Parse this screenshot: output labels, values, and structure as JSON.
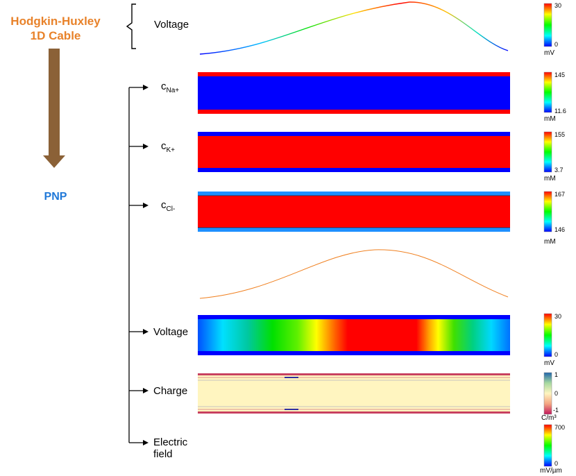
{
  "left": {
    "title_line1": "Hodgkin-Huxley",
    "title_line2": "1D Cable",
    "pnp": "PNP"
  },
  "labels": {
    "voltage_top": "Voltage",
    "cna_main": "c",
    "cna_sub": "Na+",
    "ck_main": "c",
    "ck_sub": "K+",
    "ccl_main": "c",
    "ccl_sub": "Cl-",
    "voltage_bottom": "Voltage",
    "charge": "Charge",
    "efield_line1": "Electric",
    "efield_line2": "field"
  },
  "colorbars": [
    {
      "max": "30",
      "min": "0",
      "mid": "",
      "unit": "mV",
      "scheme": "rainbow"
    },
    {
      "max": "145",
      "min": "11.6",
      "mid": "",
      "unit": "mM",
      "scheme": "rainbow"
    },
    {
      "max": "155",
      "min": "3.7",
      "mid": "",
      "unit": "mM",
      "scheme": "rainbow"
    },
    {
      "max": "167",
      "min": "146",
      "mid": "",
      "unit": "mM",
      "scheme": "rainbow"
    },
    {
      "max": "30",
      "min": "0",
      "mid": "",
      "unit": "mV",
      "scheme": "rainbow"
    },
    {
      "max": "1",
      "min": "-1",
      "mid": "0",
      "unit": "C/m³",
      "scheme": "diverging"
    },
    {
      "max": "700",
      "min": "0",
      "mid": "",
      "unit": "mV/µm",
      "scheme": "rainbow"
    }
  ],
  "colors": {
    "hh_orange": "#e8822a",
    "pnp_blue": "#1f78d8",
    "arrow_brown": "#8b6137",
    "bar_red": "#ff0000",
    "bar_blue": "#0000ff",
    "charge_fill": "#fff5c0"
  }
}
